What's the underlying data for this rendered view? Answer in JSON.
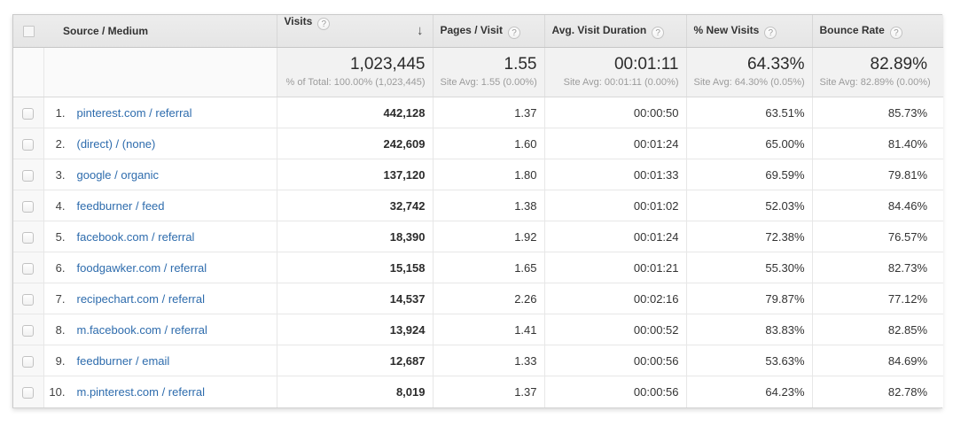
{
  "colors": {
    "link": "#2e6cad",
    "header_bg": "#e9e9e9",
    "summary_bg": "#f2f2f2",
    "row_border": "#e7e7e7",
    "value_text": "#333333",
    "subtext": "#9b9b9b"
  },
  "icons": {
    "help": "?",
    "sort_descending": "↓"
  },
  "table": {
    "columns": {
      "source": {
        "label": "Source / Medium"
      },
      "visits": {
        "label": "Visits"
      },
      "pages": {
        "label": "Pages / Visit"
      },
      "duration": {
        "label": "Avg. Visit Duration"
      },
      "new_visits": {
        "label": "% New Visits"
      },
      "bounce": {
        "label": "Bounce Rate"
      }
    },
    "summary": {
      "visits": {
        "value": "1,023,445",
        "sub": "% of Total: 100.00% (1,023,445)"
      },
      "pages": {
        "value": "1.55",
        "sub": "Site Avg: 1.55 (0.00%)"
      },
      "duration": {
        "value": "00:01:11",
        "sub": "Site Avg: 00:01:11 (0.00%)"
      },
      "new_visits": {
        "value": "64.33%",
        "sub": "Site Avg: 64.30% (0.05%)"
      },
      "bounce": {
        "value": "82.89%",
        "sub": "Site Avg: 82.89% (0.00%)"
      }
    },
    "rows": [
      {
        "rank": "1.",
        "source": "pinterest.com / referral",
        "visits": "442,128",
        "pages": "1.37",
        "duration": "00:00:50",
        "new_visits": "63.51%",
        "bounce": "85.73%"
      },
      {
        "rank": "2.",
        "source": "(direct) / (none)",
        "visits": "242,609",
        "pages": "1.60",
        "duration": "00:01:24",
        "new_visits": "65.00%",
        "bounce": "81.40%"
      },
      {
        "rank": "3.",
        "source": "google / organic",
        "visits": "137,120",
        "pages": "1.80",
        "duration": "00:01:33",
        "new_visits": "69.59%",
        "bounce": "79.81%"
      },
      {
        "rank": "4.",
        "source": "feedburner / feed",
        "visits": "32,742",
        "pages": "1.38",
        "duration": "00:01:02",
        "new_visits": "52.03%",
        "bounce": "84.46%"
      },
      {
        "rank": "5.",
        "source": "facebook.com / referral",
        "visits": "18,390",
        "pages": "1.92",
        "duration": "00:01:24",
        "new_visits": "72.38%",
        "bounce": "76.57%"
      },
      {
        "rank": "6.",
        "source": "foodgawker.com / referral",
        "visits": "15,158",
        "pages": "1.65",
        "duration": "00:01:21",
        "new_visits": "55.30%",
        "bounce": "82.73%"
      },
      {
        "rank": "7.",
        "source": "recipechart.com / referral",
        "visits": "14,537",
        "pages": "2.26",
        "duration": "00:02:16",
        "new_visits": "79.87%",
        "bounce": "77.12%"
      },
      {
        "rank": "8.",
        "source": "m.facebook.com / referral",
        "visits": "13,924",
        "pages": "1.41",
        "duration": "00:00:52",
        "new_visits": "83.83%",
        "bounce": "82.85%"
      },
      {
        "rank": "9.",
        "source": "feedburner / email",
        "visits": "12,687",
        "pages": "1.33",
        "duration": "00:00:56",
        "new_visits": "53.63%",
        "bounce": "84.69%"
      },
      {
        "rank": "10.",
        "source": "m.pinterest.com / referral",
        "visits": "8,019",
        "pages": "1.37",
        "duration": "00:00:56",
        "new_visits": "64.23%",
        "bounce": "82.78%"
      }
    ]
  }
}
